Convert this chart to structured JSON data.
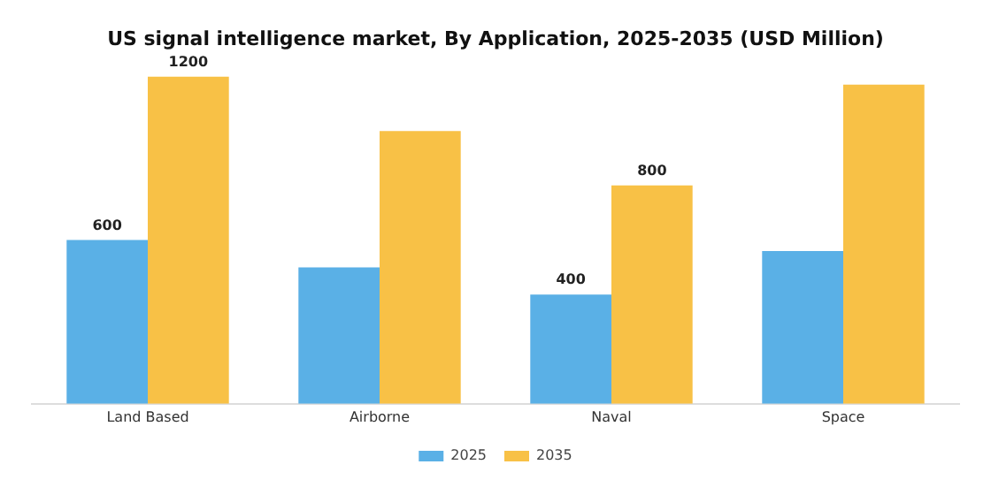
{
  "chart_data": {
    "type": "bar",
    "title": "US signal intelligence market, By Application, 2025-2035 (USD Million)",
    "categories": [
      "Land Based",
      "Airborne",
      "Naval",
      "Space"
    ],
    "legend": "bottom",
    "grid": false,
    "tick_labels": "x",
    "series": [
      {
        "name": "2025",
        "color": "#5ab0e6",
        "values": [
          600,
          500,
          400,
          560
        ],
        "value_labels": [
          "600",
          null,
          "400",
          null
        ]
      },
      {
        "name": "2035",
        "color": "#f8c146",
        "values": [
          1200,
          1000,
          800,
          1170
        ],
        "value_labels": [
          "1200",
          null,
          "800",
          null
        ]
      }
    ]
  }
}
